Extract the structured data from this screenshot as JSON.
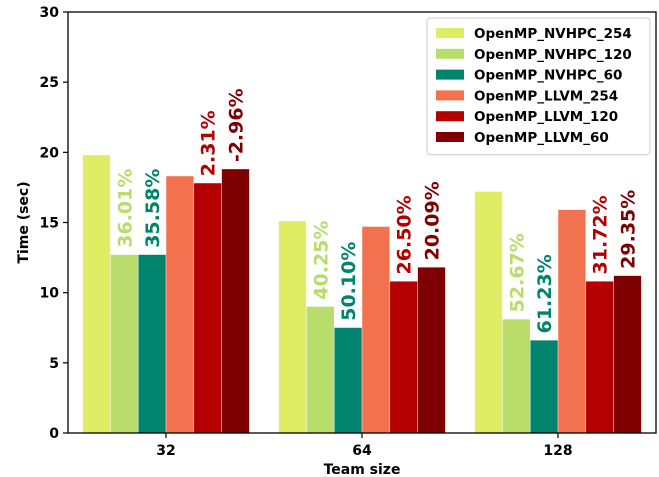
{
  "chart_data": {
    "type": "bar",
    "xlabel": "Team size",
    "ylabel": "Time (sec)",
    "ylim": [
      0,
      30
    ],
    "yticks": [
      "0",
      "5",
      "10",
      "15",
      "20",
      "25",
      "30"
    ],
    "categories": [
      "32",
      "64",
      "128"
    ],
    "legend_position": "top-right",
    "grid": false,
    "series": [
      {
        "name": "OpenMP_NVHPC_254",
        "color": "#dfed64",
        "values": [
          19.8,
          15.1,
          17.2
        ],
        "labels": [
          "",
          "",
          ""
        ]
      },
      {
        "name": "OpenMP_NVHPC_120",
        "color": "#b8dd6b",
        "values": [
          12.7,
          9.0,
          8.1
        ],
        "labels": [
          "36.01%",
          "40.25%",
          "52.67%"
        ]
      },
      {
        "name": "OpenMP_NVHPC_60",
        "color": "#00846e",
        "values": [
          12.7,
          7.5,
          6.6
        ],
        "labels": [
          "35.58%",
          "50.10%",
          "61.23%"
        ]
      },
      {
        "name": "OpenMP_LLVM_254",
        "color": "#f2714f",
        "values": [
          18.3,
          14.7,
          15.9
        ],
        "labels": [
          "",
          "",
          ""
        ]
      },
      {
        "name": "OpenMP_LLVM_120",
        "color": "#b40000",
        "values": [
          17.8,
          10.8,
          10.8
        ],
        "labels": [
          "2.31%",
          "26.50%",
          "31.72%"
        ]
      },
      {
        "name": "OpenMP_LLVM_60",
        "color": "#7f0000",
        "values": [
          18.8,
          11.8,
          11.2
        ],
        "labels": [
          "-2.96%",
          "20.09%",
          "29.35%"
        ]
      }
    ]
  }
}
